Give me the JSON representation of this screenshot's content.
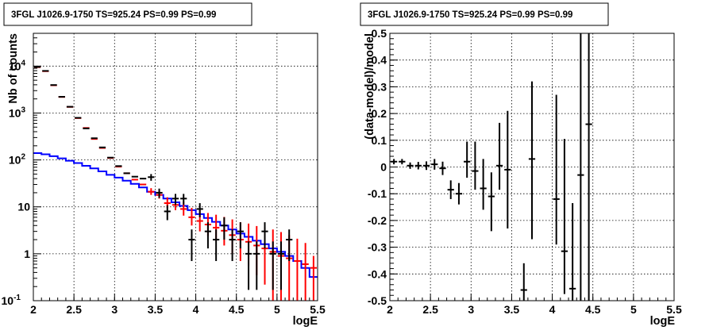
{
  "chart_data": [
    {
      "type": "scatter",
      "title": "3FGL J1026.9-1750 TS=925.24 PS=0.99 PS=0.99",
      "xlabel": "logE",
      "ylabel": "Nb of counts",
      "xlim": [
        2,
        5.5
      ],
      "ylim": [
        0.1,
        50000
      ],
      "yscale": "log",
      "grid": true,
      "x_ticks": [
        "2",
        "2.5",
        "3",
        "3.5",
        "4",
        "4.5",
        "5",
        "5.5"
      ],
      "x_tick_values": [
        2,
        2.5,
        3,
        3.5,
        4,
        4.5,
        5,
        5.5
      ],
      "y_ticks": [
        {
          "value": 0.1,
          "base": "10",
          "exp": "-1",
          "plain": ""
        },
        {
          "value": 1,
          "base": "",
          "exp": "",
          "plain": "1"
        },
        {
          "value": 10,
          "base": "",
          "exp": "",
          "plain": "10"
        },
        {
          "value": 100,
          "base": "10",
          "exp": "2",
          "plain": ""
        },
        {
          "value": 1000,
          "base": "10",
          "exp": "3",
          "plain": ""
        },
        {
          "value": 10000,
          "base": "10",
          "exp": "4",
          "plain": ""
        }
      ],
      "bin_width": 0.1,
      "series": [
        {
          "color": "#0000ff",
          "style": "step",
          "x": [
            2.05,
            2.15,
            2.25,
            2.35,
            2.45,
            2.55,
            2.65,
            2.75,
            2.85,
            2.95,
            3.05,
            3.15,
            3.25,
            3.35,
            3.45,
            3.55,
            3.65,
            3.75,
            3.85,
            3.95,
            4.05,
            4.15,
            4.25,
            4.35,
            4.45,
            4.55,
            4.65,
            4.75,
            4.85,
            4.95,
            5.05,
            5.15,
            5.25,
            5.35,
            5.45
          ],
          "y": [
            140,
            132,
            120,
            108,
            96,
            86,
            75,
            66,
            57,
            48,
            42,
            36,
            31,
            26,
            21,
            18,
            15,
            12.5,
            10.5,
            8.5,
            7.0,
            5.8,
            4.8,
            4.0,
            3.3,
            2.7,
            2.3,
            1.9,
            1.6,
            1.3,
            1.1,
            0.9,
            0.7,
            0.5,
            0.32
          ]
        },
        {
          "color": "#ff0000",
          "style": "markers",
          "x": [
            2.05,
            2.15,
            2.25,
            2.35,
            2.45,
            2.55,
            2.65,
            2.75,
            2.85,
            2.95,
            3.05,
            3.15,
            3.25,
            3.35,
            3.45,
            3.55,
            3.65,
            3.75,
            3.85,
            3.95,
            4.05,
            4.15,
            4.25,
            4.35,
            4.45,
            4.55,
            4.65,
            4.75,
            4.85,
            4.95,
            5.05,
            5.15,
            5.25,
            5.35,
            5.45
          ],
          "y": [
            9500,
            7800,
            3900,
            2200,
            1350,
            780,
            480,
            280,
            180,
            110,
            72,
            52,
            38,
            30,
            21,
            18,
            12,
            11,
            9,
            6,
            5,
            4.2,
            3.6,
            3.1,
            2.5,
            2.0,
            1.8,
            1.5,
            1.3,
            1.1,
            0.9,
            0.8,
            0.7,
            0.6,
            0.5
          ],
          "err_low": [
            0,
            0,
            0,
            0,
            0,
            0,
            0,
            0,
            0,
            0,
            0,
            0,
            0,
            0,
            3,
            3,
            2.5,
            2.5,
            2.5,
            2,
            2,
            1.8,
            1.7,
            1.6,
            1.5,
            1.3,
            1.25,
            1.15,
            1.08,
            1.02,
            0.9,
            0.8,
            0.7,
            0.6,
            0.5
          ],
          "err_high": [
            0,
            0,
            0,
            0,
            0,
            0,
            0,
            0,
            0,
            0,
            0,
            0,
            0,
            0,
            4,
            4,
            4,
            4,
            4,
            3.5,
            3.5,
            3.2,
            3.2,
            3.0,
            2.9,
            2.7,
            2.6,
            2.4,
            2.4,
            2.2,
            2.0,
            1.7,
            1.4,
            1.1,
            0.4
          ]
        },
        {
          "color": "#000000",
          "style": "markers",
          "x": [
            2.05,
            2.15,
            2.25,
            2.35,
            2.45,
            2.55,
            2.65,
            2.75,
            2.85,
            2.95,
            3.05,
            3.15,
            3.25,
            3.35,
            3.45,
            3.55,
            3.65,
            3.75,
            3.85,
            3.95,
            4.05,
            4.15,
            4.25,
            4.35,
            4.45,
            4.55,
            4.65,
            4.75,
            4.85,
            4.95,
            5.05,
            5.15
          ],
          "y": [
            9600,
            7900,
            3950,
            2220,
            1360,
            790,
            470,
            290,
            185,
            112,
            74,
            52,
            44,
            40,
            43,
            20,
            8,
            15,
            15,
            2,
            9,
            3,
            2,
            4,
            2,
            3,
            1,
            1,
            3,
            1,
            1,
            2
          ],
          "err_low": [
            0,
            0,
            0,
            0,
            0,
            0,
            0,
            0,
            0,
            0,
            0,
            0,
            0,
            0,
            7,
            4.5,
            2.8,
            3.9,
            3.9,
            1.3,
            3,
            1.7,
            1.3,
            2,
            1.3,
            1.7,
            0.83,
            0.83,
            1.7,
            0.83,
            0.83,
            1.3
          ],
          "err_high": [
            0,
            0,
            0,
            0,
            0,
            0,
            0,
            0,
            0,
            0,
            0,
            0,
            0,
            0,
            7,
            4.5,
            2.8,
            3.9,
            3.9,
            1.3,
            3,
            1.7,
            1.3,
            2,
            1.3,
            1.7,
            0.83,
            0.83,
            1.7,
            0.83,
            0.83,
            1.3
          ]
        }
      ]
    },
    {
      "type": "scatter",
      "title": "3FGL J1026.9-1750 TS=925.24 PS=0.99 PS=0.99",
      "xlabel": "logE",
      "ylabel": "(data-model)/model",
      "xlim": [
        2,
        5.5
      ],
      "ylim": [
        -0.5,
        0.5
      ],
      "grid": true,
      "x_ticks": [
        "2",
        "2.5",
        "3",
        "3.5",
        "4",
        "4.5",
        "5",
        "5.5"
      ],
      "x_tick_values": [
        2,
        2.5,
        3,
        3.5,
        4,
        4.5,
        5,
        5.5
      ],
      "y_ticks": [
        "-0.5",
        "-0.4",
        "-0.3",
        "-0.2",
        "-0.1",
        "0",
        "0.1",
        "0.2",
        "0.3",
        "0.4",
        "0.5"
      ],
      "y_tick_values": [
        -0.5,
        -0.4,
        -0.3,
        -0.2,
        -0.1,
        0,
        0.1,
        0.2,
        0.3,
        0.4,
        0.5
      ],
      "bin_width": 0.1,
      "series": [
        {
          "color": "#000000",
          "style": "markers",
          "x": [
            2.05,
            2.15,
            2.25,
            2.35,
            2.45,
            2.55,
            2.65,
            2.75,
            2.85,
            2.95,
            3.05,
            3.15,
            3.25,
            3.35,
            3.45,
            3.65,
            3.75,
            4.05,
            4.15,
            4.25,
            4.35,
            4.45
          ],
          "y": [
            0.02,
            0.02,
            0.005,
            0.005,
            0.005,
            0.01,
            -0.005,
            -0.085,
            -0.1,
            0.02,
            -0.015,
            -0.08,
            -0.11,
            0.005,
            -0.01,
            -0.46,
            0.03,
            -0.12,
            -0.315,
            -0.455,
            -0.03,
            0.16
          ],
          "err_low": [
            0.01,
            0.01,
            0.012,
            0.014,
            0.016,
            0.02,
            0.025,
            0.035,
            0.04,
            0.06,
            0.07,
            0.08,
            0.13,
            0.09,
            0.22,
            0.12,
            0.3,
            0.17,
            0.16,
            0.12,
            0.5,
            0.7
          ],
          "err_high": [
            0.01,
            0.01,
            0.012,
            0.014,
            0.016,
            0.02,
            0.025,
            0.035,
            0.04,
            0.075,
            0.11,
            0.11,
            0.09,
            0.16,
            0.22,
            0.1,
            0.29,
            0.39,
            0.42,
            0.32,
            0.6,
            0.6
          ]
        }
      ]
    }
  ]
}
